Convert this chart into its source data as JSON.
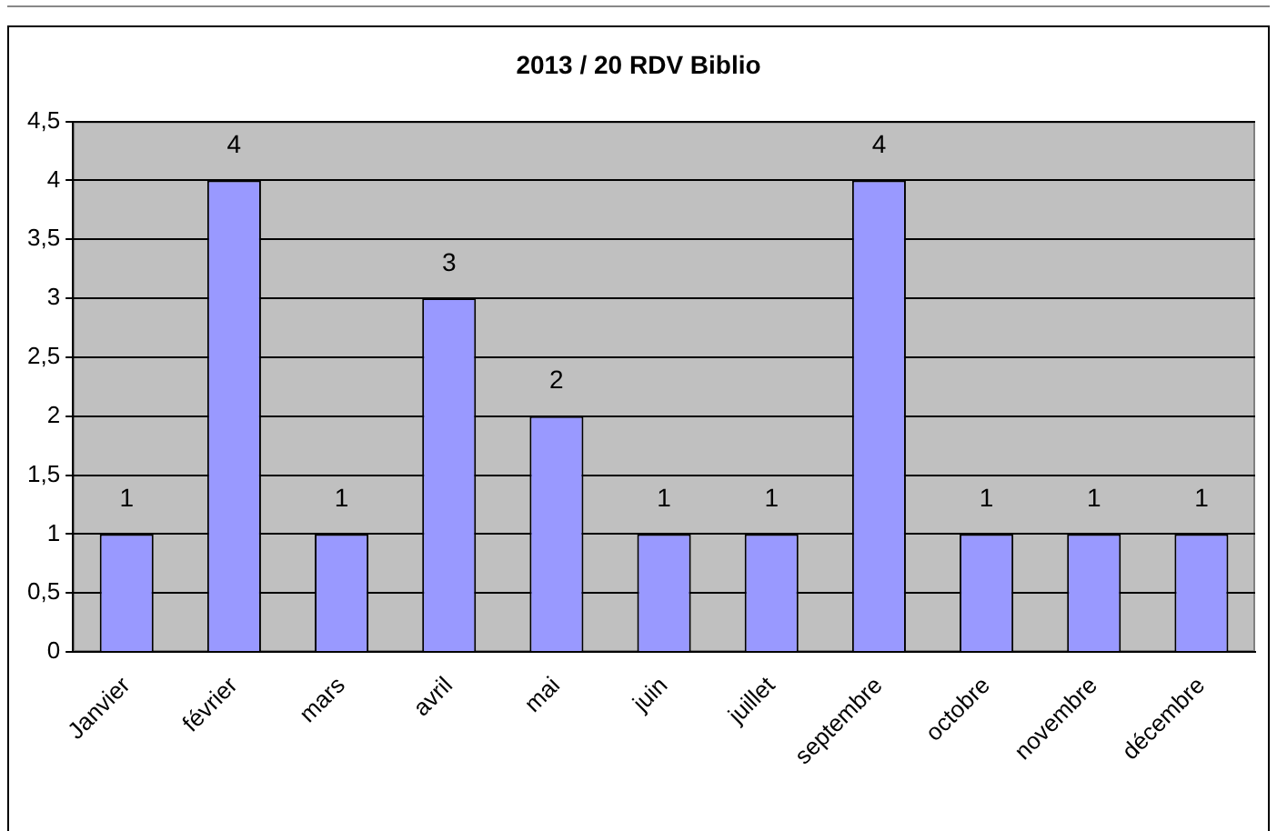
{
  "chart_data": {
    "type": "bar",
    "title": "2013 / 20 RDV Biblio",
    "categories": [
      "Janvier",
      "février",
      "mars",
      "avril",
      "mai",
      "juin",
      "juillet",
      "septembre",
      "octobre",
      "novembre",
      "décembre"
    ],
    "values": [
      1,
      4,
      1,
      3,
      2,
      1,
      1,
      4,
      1,
      1,
      1
    ],
    "color": "#9999ff",
    "ylim": [
      0,
      4.5
    ],
    "yticks": [
      0,
      {
        "value": 0.5,
        "label": "0,5"
      },
      1,
      {
        "value": 1.5,
        "label": "1,5"
      },
      2,
      {
        "value": 2.5,
        "label": "2,5"
      },
      3,
      {
        "value": 3.5,
        "label": "3,5"
      },
      4,
      {
        "value": 4.5,
        "label": "4,5"
      }
    ],
    "grid": "y",
    "data_labels": true,
    "legend": false
  }
}
